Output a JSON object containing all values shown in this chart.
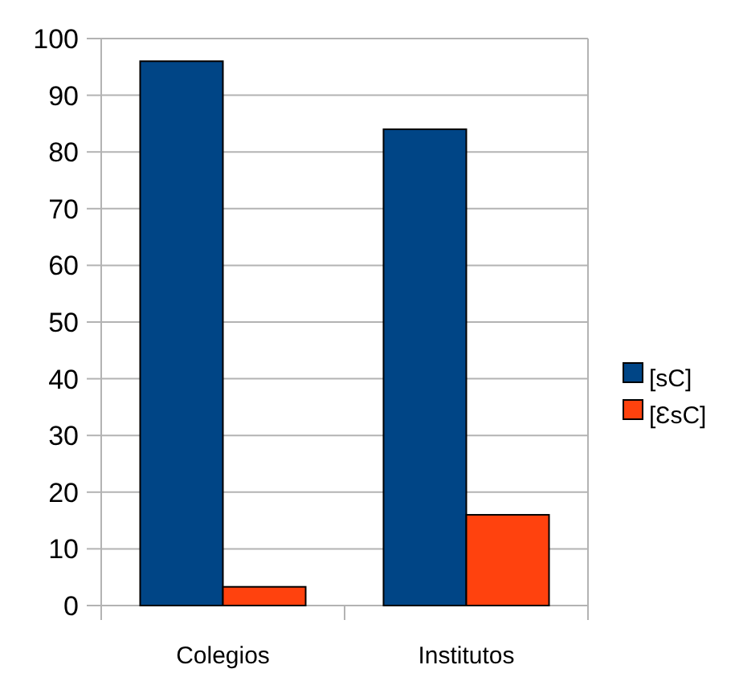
{
  "chart_data": {
    "type": "bar",
    "categories": [
      "Colegios",
      "Institutos"
    ],
    "series": [
      {
        "name": "[sC]",
        "color": "#004586",
        "values": [
          96,
          84
        ]
      },
      {
        "name": "[ƐsC]",
        "color": "#ff420e",
        "values": [
          3.3,
          16
        ]
      }
    ],
    "ylim": [
      0,
      100
    ],
    "yticks": [
      0,
      10,
      20,
      30,
      40,
      50,
      60,
      70,
      80,
      90,
      100
    ],
    "grid": "y",
    "legend": "right"
  }
}
